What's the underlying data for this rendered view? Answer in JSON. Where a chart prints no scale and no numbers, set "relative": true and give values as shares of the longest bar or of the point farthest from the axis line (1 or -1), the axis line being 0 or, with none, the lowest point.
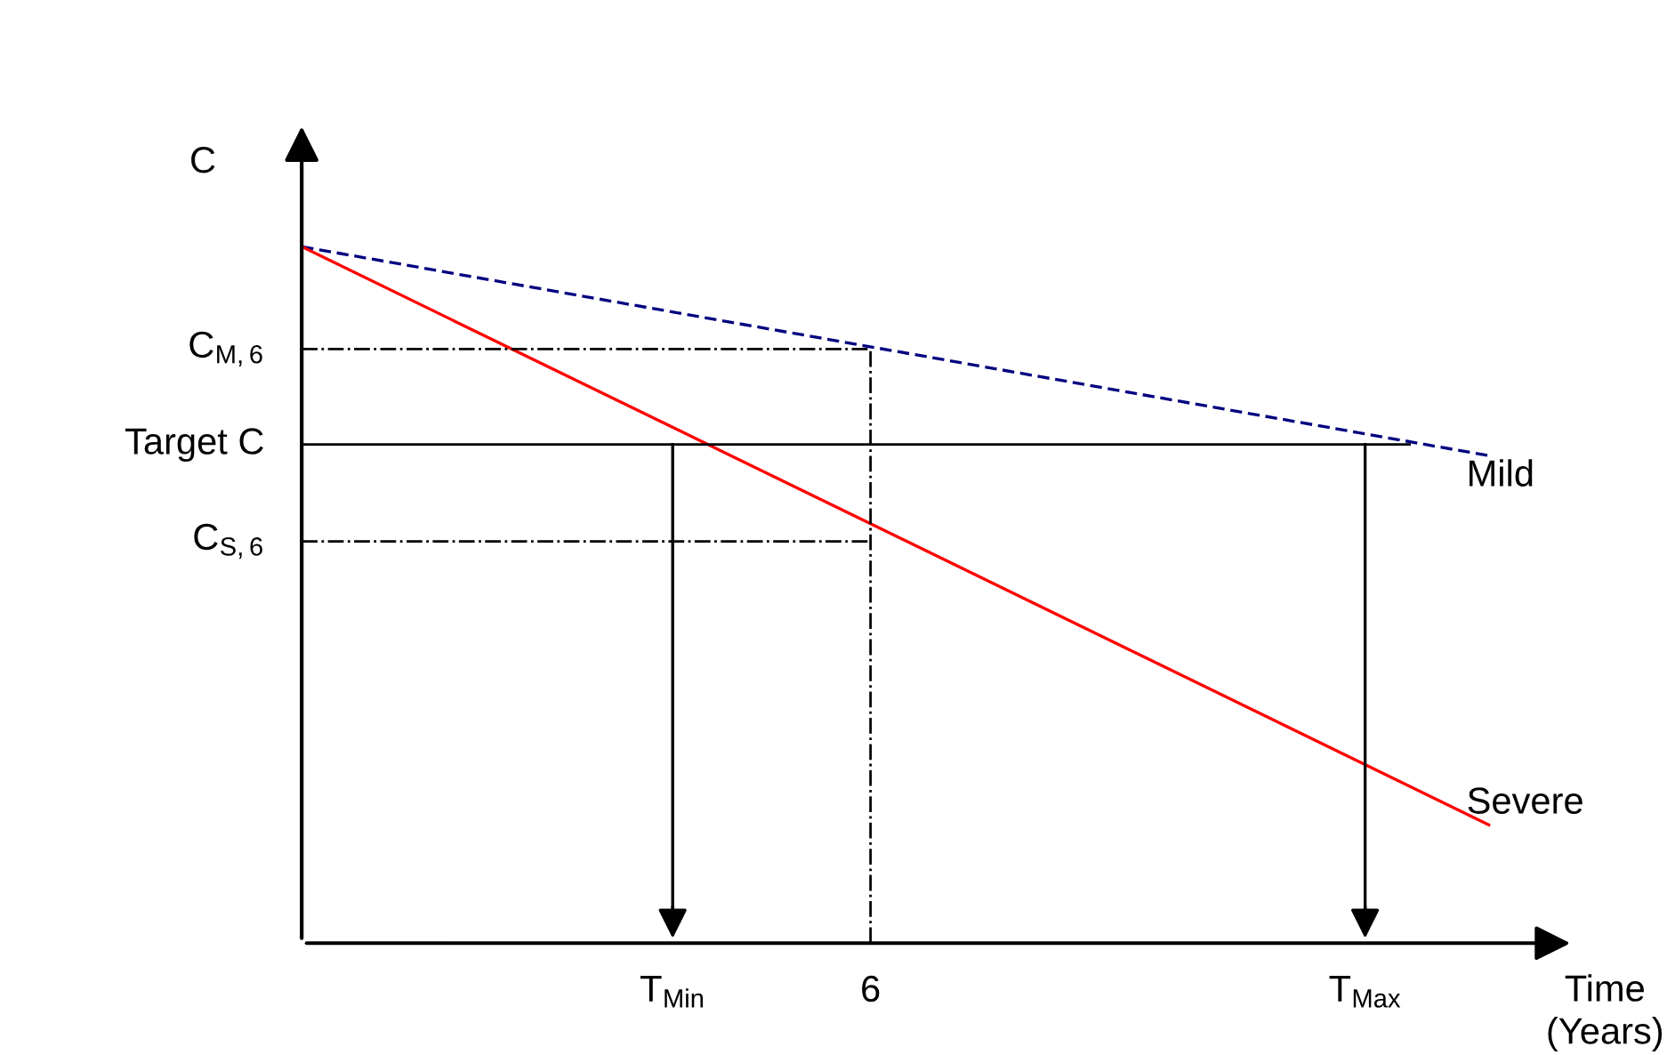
{
  "chart_data": {
    "type": "line",
    "relative": true,
    "ylabel": "C",
    "xlabel": "Time\n(Years)",
    "categories": [
      null,
      null,
      null,
      null,
      null,
      null,
      null,
      null,
      null,
      null,
      null,
      null,
      null,
      null,
      null,
      "T$_{Min}$",
      null,
      null,
      null,
      null,
      null,
      null,
      null,
      "6",
      null,
      null,
      null,
      null,
      null,
      null,
      null,
      null,
      null,
      null,
      null,
      null,
      null,
      null,
      null,
      null,
      null,
      null,
      null,
      "T$_{Max}$",
      null,
      null,
      null,
      null,
      null,
      null,
      null,
      null
    ],
    "series": [
      {
        "name": "Mild",
        "color": "#000080",
        "line_style": "dashed",
        "values": [
          1,
          null,
          null,
          null,
          null,
          null,
          null,
          null,
          null,
          null,
          null,
          null,
          null,
          null,
          null,
          null,
          null,
          null,
          null,
          null,
          null,
          null,
          null,
          null,
          null,
          null,
          null,
          null,
          null,
          null,
          null,
          null,
          null,
          null,
          null,
          null,
          null,
          null,
          null,
          null,
          null,
          null,
          null,
          null,
          null,
          null,
          null,
          null,
          0.7,
          null,
          null,
          null
        ]
      },
      {
        "name": "Severe",
        "color": "#ff0000",
        "line_style": "solid",
        "values": [
          1,
          null,
          null,
          null,
          null,
          null,
          null,
          null,
          null,
          null,
          null,
          null,
          null,
          null,
          null,
          null,
          null,
          null,
          null,
          null,
          null,
          null,
          null,
          null,
          null,
          null,
          null,
          null,
          null,
          null,
          null,
          null,
          null,
          null,
          null,
          null,
          null,
          null,
          null,
          null,
          null,
          null,
          null,
          null,
          null,
          null,
          null,
          null,
          0.17,
          null,
          null,
          null
        ]
      }
    ],
    "ref_lines": [
      {
        "axis": "y",
        "value": 0.853,
        "label": "C$_{M,6}$",
        "color": "#000000",
        "line_style": "dashdot"
      },
      {
        "axis": "y",
        "value": 0.716,
        "label": "Target C",
        "color": "#000000",
        "line_style": "solid"
      },
      {
        "axis": "y",
        "value": 0.577,
        "label": "C$_{S,6}$",
        "color": "#000000",
        "line_style": "dashdot"
      },
      {
        "axis": "x",
        "value": "T$_{Min}$",
        "label": null,
        "color": "#000000",
        "line_style": "solid"
      },
      {
        "axis": "x",
        "value": "6",
        "label": null,
        "color": "#000000",
        "line_style": "dashdot"
      },
      {
        "axis": "x",
        "value": "T$_{Max}$",
        "label": null,
        "color": "#000000",
        "line_style": "solid"
      }
    ],
    "legend": false,
    "marker": "none"
  }
}
